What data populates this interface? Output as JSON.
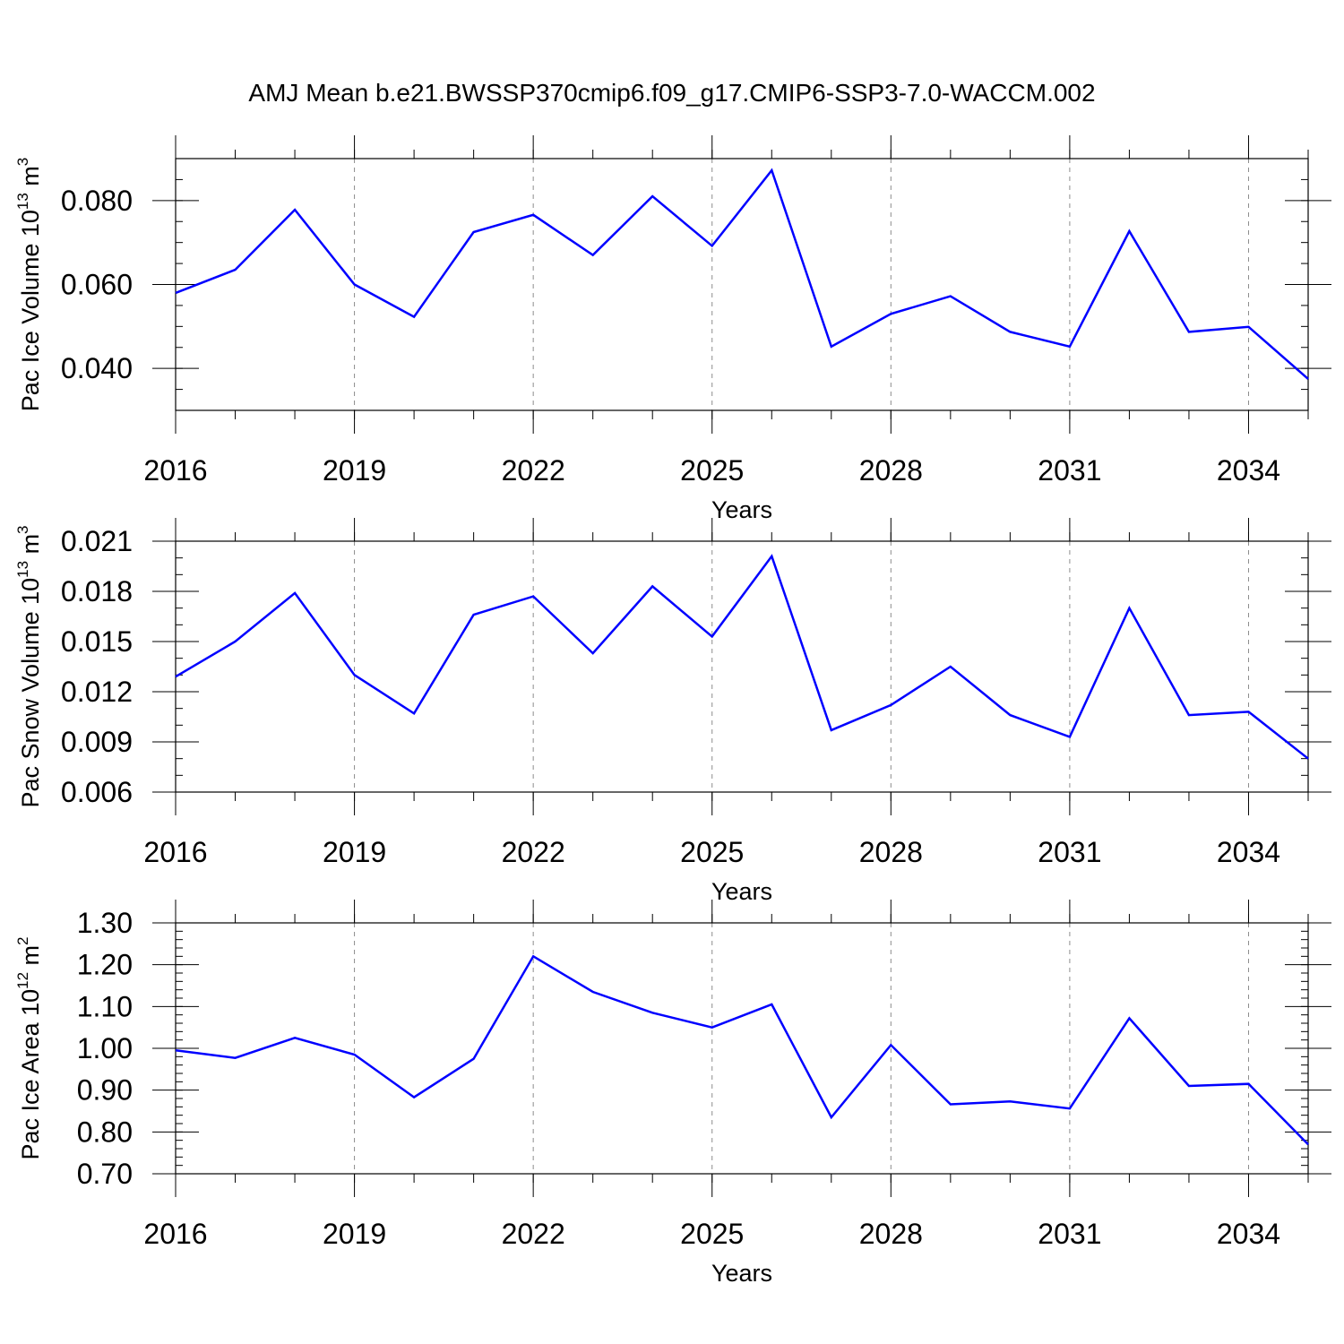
{
  "title": "AMJ Mean b.e21.BWSSP370cmip6.f09_g17.CMIP6-SSP3-7.0-WACCM.002",
  "colors": {
    "line": "#0000ff",
    "grid": "#8c8c8c",
    "axis": "#000000"
  },
  "chart_data": [
    {
      "type": "line",
      "title": "",
      "xlabel": "Years",
      "ylabel_main": "Pac Ice Volume 10",
      "ylabel_exp": "13",
      "ylabel_unit": " m",
      "ylabel_unit_exp": "3",
      "xlim": [
        2016,
        2035
      ],
      "ylim": [
        0.03,
        0.09
      ],
      "x_ticks": [
        2016,
        2019,
        2022,
        2025,
        2028,
        2031,
        2034
      ],
      "x_tick_labels": [
        "2016",
        "2019",
        "2022",
        "2025",
        "2028",
        "2031",
        "2034"
      ],
      "y_ticks": [
        0.04,
        0.06,
        0.08
      ],
      "y_tick_labels": [
        "0.040",
        "0.060",
        "0.080"
      ],
      "y_minor_step": 0.005,
      "grid": "vertical dashed at major x ticks",
      "x": [
        2016,
        2017,
        2018,
        2019,
        2020,
        2021,
        2022,
        2023,
        2024,
        2025,
        2026,
        2027,
        2028,
        2029,
        2030,
        2031,
        2032,
        2033,
        2034,
        2035
      ],
      "y": [
        0.058,
        0.0635,
        0.0778,
        0.06,
        0.0523,
        0.0725,
        0.0766,
        0.067,
        0.081,
        0.0692,
        0.0872,
        0.0452,
        0.053,
        0.0572,
        0.0487,
        0.0452,
        0.0727,
        0.0487,
        0.0499,
        0.0375
      ]
    },
    {
      "type": "line",
      "title": "",
      "xlabel": "Years",
      "ylabel_main": "Pac Snow Volume 10",
      "ylabel_exp": "13",
      "ylabel_unit": " m",
      "ylabel_unit_exp": "3",
      "xlim": [
        2016,
        2035
      ],
      "ylim": [
        0.006,
        0.021
      ],
      "x_ticks": [
        2016,
        2019,
        2022,
        2025,
        2028,
        2031,
        2034
      ],
      "x_tick_labels": [
        "2016",
        "2019",
        "2022",
        "2025",
        "2028",
        "2031",
        "2034"
      ],
      "y_ticks": [
        0.006,
        0.009,
        0.012,
        0.015,
        0.018,
        0.021
      ],
      "y_tick_labels": [
        "0.006",
        "0.009",
        "0.012",
        "0.015",
        "0.018",
        "0.021"
      ],
      "y_minor_step": 0.001,
      "grid": "vertical dashed at major x ticks",
      "x": [
        2016,
        2017,
        2018,
        2019,
        2020,
        2021,
        2022,
        2023,
        2024,
        2025,
        2026,
        2027,
        2028,
        2029,
        2030,
        2031,
        2032,
        2033,
        2034,
        2035
      ],
      "y": [
        0.0129,
        0.015,
        0.0179,
        0.013,
        0.0107,
        0.0166,
        0.0177,
        0.0143,
        0.0183,
        0.0153,
        0.0201,
        0.0097,
        0.0112,
        0.0135,
        0.0106,
        0.0093,
        0.017,
        0.0106,
        0.0108,
        0.008
      ]
    },
    {
      "type": "line",
      "title": "",
      "xlabel": "Years",
      "ylabel_main": "Pac Ice Area 10",
      "ylabel_exp": "12",
      "ylabel_unit": " m",
      "ylabel_unit_exp": "2",
      "xlim": [
        2016,
        2035
      ],
      "ylim": [
        0.7,
        1.3
      ],
      "x_ticks": [
        2016,
        2019,
        2022,
        2025,
        2028,
        2031,
        2034
      ],
      "x_tick_labels": [
        "2016",
        "2019",
        "2022",
        "2025",
        "2028",
        "2031",
        "2034"
      ],
      "y_ticks": [
        0.7,
        0.8,
        0.9,
        1.0,
        1.1,
        1.2,
        1.3
      ],
      "y_tick_labels": [
        "0.70",
        "0.80",
        "0.90",
        "1.00",
        "1.10",
        "1.20",
        "1.30"
      ],
      "y_minor_step": 0.02,
      "grid": "vertical dashed at major x ticks",
      "x": [
        2016,
        2017,
        2018,
        2019,
        2020,
        2021,
        2022,
        2023,
        2024,
        2025,
        2026,
        2027,
        2028,
        2029,
        2030,
        2031,
        2032,
        2033,
        2034,
        2035
      ],
      "y": [
        0.995,
        0.977,
        1.025,
        0.985,
        0.883,
        0.975,
        1.22,
        1.135,
        1.085,
        1.05,
        1.105,
        0.835,
        1.008,
        0.866,
        0.873,
        0.856,
        1.072,
        0.91,
        0.915,
        0.77
      ]
    }
  ]
}
